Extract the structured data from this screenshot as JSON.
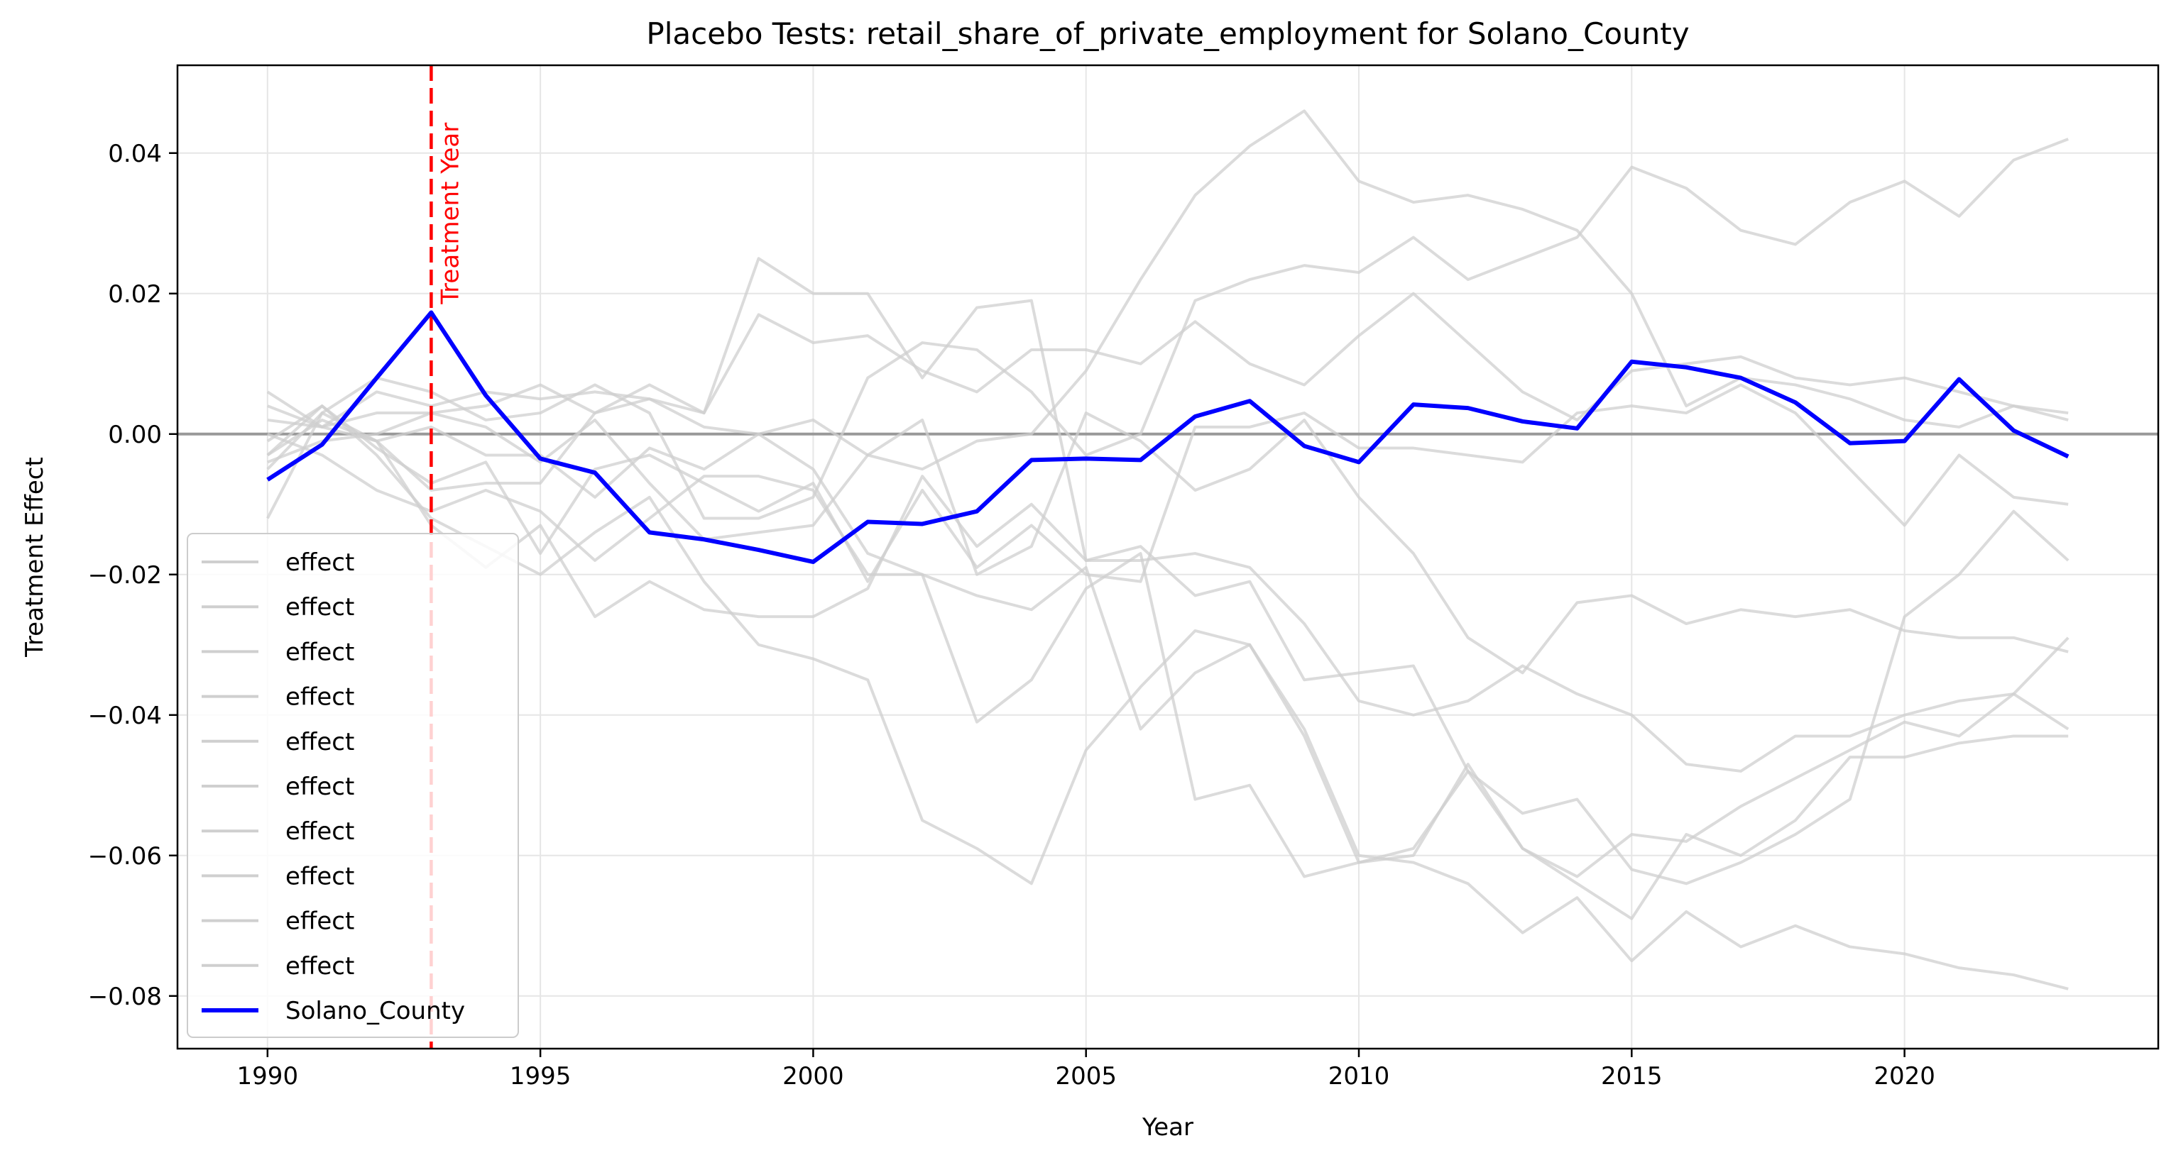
{
  "chart_data": {
    "type": "line",
    "title": "Placebo Tests: retail_share_of_private_employment for Solano_County",
    "xlabel": "Year",
    "ylabel": "Treatment Effect",
    "xlim": [
      1988.35,
      2024.65
    ],
    "ylim": [
      -0.0875,
      0.0525
    ],
    "x_ticks": [
      1990,
      1995,
      2000,
      2005,
      2010,
      2015,
      2020
    ],
    "x_tick_labels": [
      "1990",
      "1995",
      "2000",
      "2005",
      "2010",
      "2015",
      "2020"
    ],
    "y_ticks": [
      -0.08,
      -0.06,
      -0.04,
      -0.02,
      0.0,
      0.02,
      0.04
    ],
    "y_tick_labels": [
      "−0.08",
      "−0.06",
      "−0.04",
      "−0.02",
      "0.00",
      "0.02",
      "0.04"
    ],
    "grid": true,
    "legend_position": "lower-left",
    "zero_line": 0,
    "treatment_year": 1993,
    "treatment_label": "Treatment Year",
    "x": [
      1990,
      1991,
      1992,
      1993,
      1994,
      1995,
      1996,
      1997,
      1998,
      1999,
      2000,
      2001,
      2002,
      2003,
      2004,
      2005,
      2006,
      2007,
      2008,
      2009,
      2010,
      2011,
      2012,
      2013,
      2014,
      2015,
      2016,
      2017,
      2018,
      2019,
      2020,
      2021,
      2022,
      2023
    ],
    "placebo_color": "#cfcfcf",
    "main_color": "#0000ff",
    "treatment_color": "#ff0000",
    "zero_line_color": "#999999",
    "series": [
      {
        "name": "effect",
        "values": [
          0.006,
          0.001,
          -0.001,
          -0.008,
          -0.007,
          -0.007,
          0.003,
          0.005,
          0.003,
          0.025,
          0.02,
          0.02,
          0.008,
          0.018,
          0.019,
          -0.018,
          -0.016,
          -0.023,
          -0.021,
          -0.035,
          -0.034,
          -0.033,
          -0.048,
          -0.059,
          -0.064,
          -0.069,
          -0.057,
          -0.06,
          -0.055,
          -0.046,
          -0.046,
          -0.044,
          -0.043,
          -0.043
        ]
      },
      {
        "name": "effect",
        "values": [
          -0.003,
          0.004,
          -0.003,
          -0.012,
          -0.016,
          -0.02,
          -0.014,
          -0.009,
          -0.021,
          -0.03,
          -0.032,
          -0.035,
          -0.055,
          -0.059,
          -0.064,
          -0.045,
          -0.036,
          -0.028,
          -0.03,
          -0.042,
          -0.06,
          -0.061,
          -0.064,
          -0.071,
          -0.066,
          -0.075,
          -0.068,
          -0.073,
          -0.07,
          -0.073,
          -0.074,
          -0.076,
          -0.077,
          -0.079
        ]
      },
      {
        "name": "effect",
        "values": [
          0.002,
          0.001,
          0.006,
          0.004,
          0.006,
          0.005,
          0.006,
          0.005,
          0.001,
          0.0,
          0.002,
          -0.003,
          -0.005,
          -0.001,
          0.0,
          0.009,
          0.022,
          0.034,
          0.041,
          0.046,
          0.036,
          0.033,
          0.034,
          0.032,
          0.029,
          0.02,
          0.004,
          0.008,
          0.007,
          0.005,
          0.002,
          0.001,
          0.004,
          0.002
        ]
      },
      {
        "name": "effect",
        "values": [
          -0.005,
          0.003,
          0.008,
          0.006,
          0.002,
          0.003,
          0.007,
          0.003,
          -0.012,
          -0.012,
          -0.009,
          0.008,
          0.013,
          0.012,
          0.006,
          -0.003,
          0.0,
          0.019,
          0.022,
          0.024,
          0.023,
          0.028,
          0.022,
          0.025,
          0.028,
          0.038,
          0.035,
          0.029,
          0.027,
          0.033,
          0.036,
          0.031,
          0.039,
          0.042
        ]
      },
      {
        "name": "effect",
        "values": [
          -0.012,
          0.003,
          -0.001,
          -0.013,
          -0.019,
          -0.013,
          -0.026,
          -0.021,
          -0.025,
          -0.026,
          -0.026,
          -0.022,
          -0.006,
          -0.016,
          -0.01,
          -0.018,
          -0.018,
          -0.017,
          -0.019,
          -0.027,
          -0.038,
          -0.04,
          -0.038,
          -0.033,
          -0.037,
          -0.04,
          -0.047,
          -0.048,
          -0.043,
          -0.043,
          -0.04,
          -0.038,
          -0.037,
          -0.029
        ]
      },
      {
        "name": "effect",
        "values": [
          0.0,
          -0.003,
          -0.008,
          -0.011,
          -0.008,
          -0.011,
          -0.018,
          -0.012,
          -0.006,
          -0.006,
          -0.008,
          -0.02,
          -0.02,
          -0.023,
          -0.025,
          -0.019,
          -0.042,
          -0.034,
          -0.03,
          -0.043,
          -0.061,
          -0.06,
          -0.047,
          -0.059,
          -0.063,
          -0.057,
          -0.058,
          -0.053,
          -0.049,
          -0.045,
          -0.041,
          -0.043,
          -0.037,
          -0.042
        ]
      },
      {
        "name": "effect",
        "values": [
          -0.003,
          0.002,
          -0.001,
          0.001,
          -0.003,
          -0.003,
          -0.009,
          -0.002,
          -0.005,
          0.0,
          -0.005,
          -0.017,
          -0.02,
          -0.041,
          -0.035,
          -0.022,
          -0.017,
          -0.052,
          -0.05,
          -0.063,
          -0.061,
          -0.059,
          -0.048,
          -0.054,
          -0.052,
          -0.062,
          -0.064,
          -0.061,
          -0.057,
          -0.052,
          -0.026,
          -0.02,
          -0.011,
          -0.018
        ]
      },
      {
        "name": "effect",
        "values": [
          0.004,
          0.001,
          0.003,
          0.003,
          0.004,
          0.007,
          0.003,
          0.007,
          0.003,
          0.017,
          0.013,
          0.014,
          0.009,
          0.006,
          0.012,
          0.012,
          0.01,
          0.016,
          0.01,
          0.007,
          0.014,
          0.02,
          0.013,
          0.006,
          0.002,
          0.009,
          0.01,
          0.011,
          0.008,
          0.007,
          0.008,
          0.006,
          0.004,
          0.003
        ]
      },
      {
        "name": "effect",
        "values": [
          -0.004,
          -0.001,
          0.0,
          0.003,
          0.001,
          -0.004,
          0.002,
          -0.007,
          -0.015,
          -0.014,
          -0.013,
          -0.003,
          0.002,
          -0.02,
          -0.016,
          0.003,
          -0.001,
          -0.008,
          -0.005,
          0.002,
          -0.009,
          -0.017,
          -0.029,
          -0.034,
          -0.024,
          -0.023,
          -0.027,
          -0.025,
          -0.026,
          -0.025,
          -0.028,
          -0.029,
          -0.029,
          -0.031
        ]
      },
      {
        "name": "effect",
        "values": [
          -0.001,
          0.004,
          -0.002,
          -0.007,
          -0.004,
          -0.017,
          -0.005,
          -0.003,
          -0.007,
          -0.011,
          -0.007,
          -0.021,
          -0.008,
          -0.019,
          -0.013,
          -0.02,
          -0.021,
          0.001,
          0.001,
          0.003,
          -0.002,
          -0.002,
          -0.003,
          -0.004,
          0.003,
          0.004,
          0.003,
          0.007,
          0.003,
          -0.005,
          -0.013,
          -0.003,
          -0.009,
          -0.01
        ]
      },
      {
        "name": "Solano_County",
        "values": [
          -0.0065,
          -0.0015,
          0.008,
          0.0173,
          0.0055,
          -0.0035,
          -0.0055,
          -0.014,
          -0.015,
          -0.0165,
          -0.0182,
          -0.0125,
          -0.0128,
          -0.011,
          -0.0037,
          -0.0035,
          -0.0037,
          0.0025,
          0.0047,
          -0.0017,
          -0.004,
          0.0042,
          0.0037,
          0.0018,
          0.0008,
          0.0103,
          0.0095,
          0.008,
          0.0045,
          -0.0013,
          -0.001,
          0.0078,
          0.0005,
          -0.0032
        ]
      }
    ]
  }
}
